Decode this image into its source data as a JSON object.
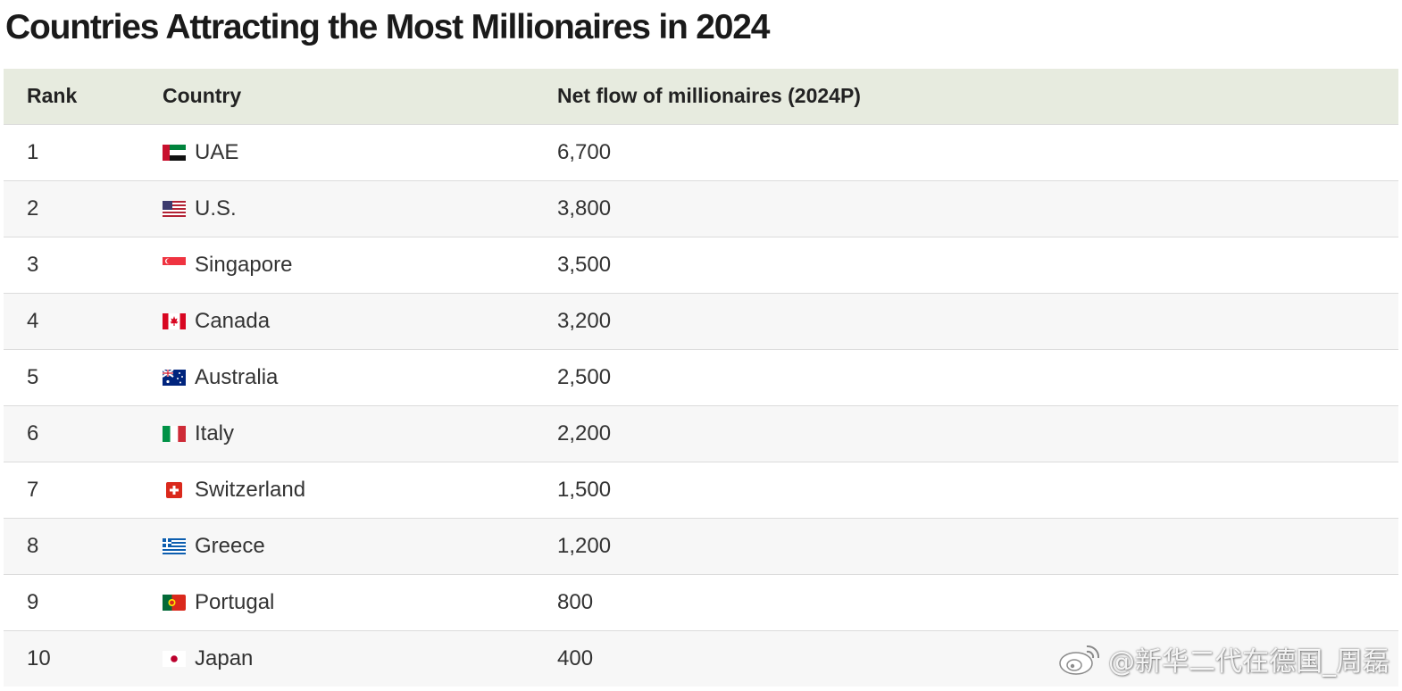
{
  "title": "Countries Attracting the Most Millionaires in 2024",
  "table": {
    "headers": {
      "rank": "Rank",
      "country": "Country",
      "flow": "Net flow of millionaires (2024P)"
    },
    "rows": [
      {
        "rank": "1",
        "country": "UAE",
        "flow": "6,700",
        "flag": "uae-flag-icon"
      },
      {
        "rank": "2",
        "country": "U.S.",
        "flow": "3,800",
        "flag": "us-flag-icon"
      },
      {
        "rank": "3",
        "country": "Singapore",
        "flow": "3,500",
        "flag": "singapore-flag-icon"
      },
      {
        "rank": "4",
        "country": "Canada",
        "flow": "3,200",
        "flag": "canada-flag-icon"
      },
      {
        "rank": "5",
        "country": "Australia",
        "flow": "2,500",
        "flag": "australia-flag-icon"
      },
      {
        "rank": "6",
        "country": "Italy",
        "flow": "2,200",
        "flag": "italy-flag-icon"
      },
      {
        "rank": "7",
        "country": "Switzerland",
        "flow": "1,500",
        "flag": "switzerland-flag-icon"
      },
      {
        "rank": "8",
        "country": "Greece",
        "flow": "1,200",
        "flag": "greece-flag-icon"
      },
      {
        "rank": "9",
        "country": "Portugal",
        "flow": "800",
        "flag": "portugal-flag-icon"
      },
      {
        "rank": "10",
        "country": "Japan",
        "flow": "400",
        "flag": "japan-flag-icon"
      }
    ]
  },
  "chart_data": {
    "type": "table",
    "title": "Countries Attracting the Most Millionaires in 2024",
    "columns": [
      "Rank",
      "Country",
      "Net flow of millionaires (2024P)"
    ],
    "categories": [
      "UAE",
      "U.S.",
      "Singapore",
      "Canada",
      "Australia",
      "Italy",
      "Switzerland",
      "Greece",
      "Portugal",
      "Japan"
    ],
    "values": [
      6700,
      3800,
      3500,
      3200,
      2500,
      2200,
      1500,
      1200,
      800,
      400
    ]
  },
  "watermark": {
    "text": "@新华二代在德国_周磊",
    "icon": "weibo-logo-icon"
  },
  "colors": {
    "header_bg": "#e7ebdf",
    "row_alt_bg": "#f7f7f7",
    "divider": "#dcdcdc"
  }
}
